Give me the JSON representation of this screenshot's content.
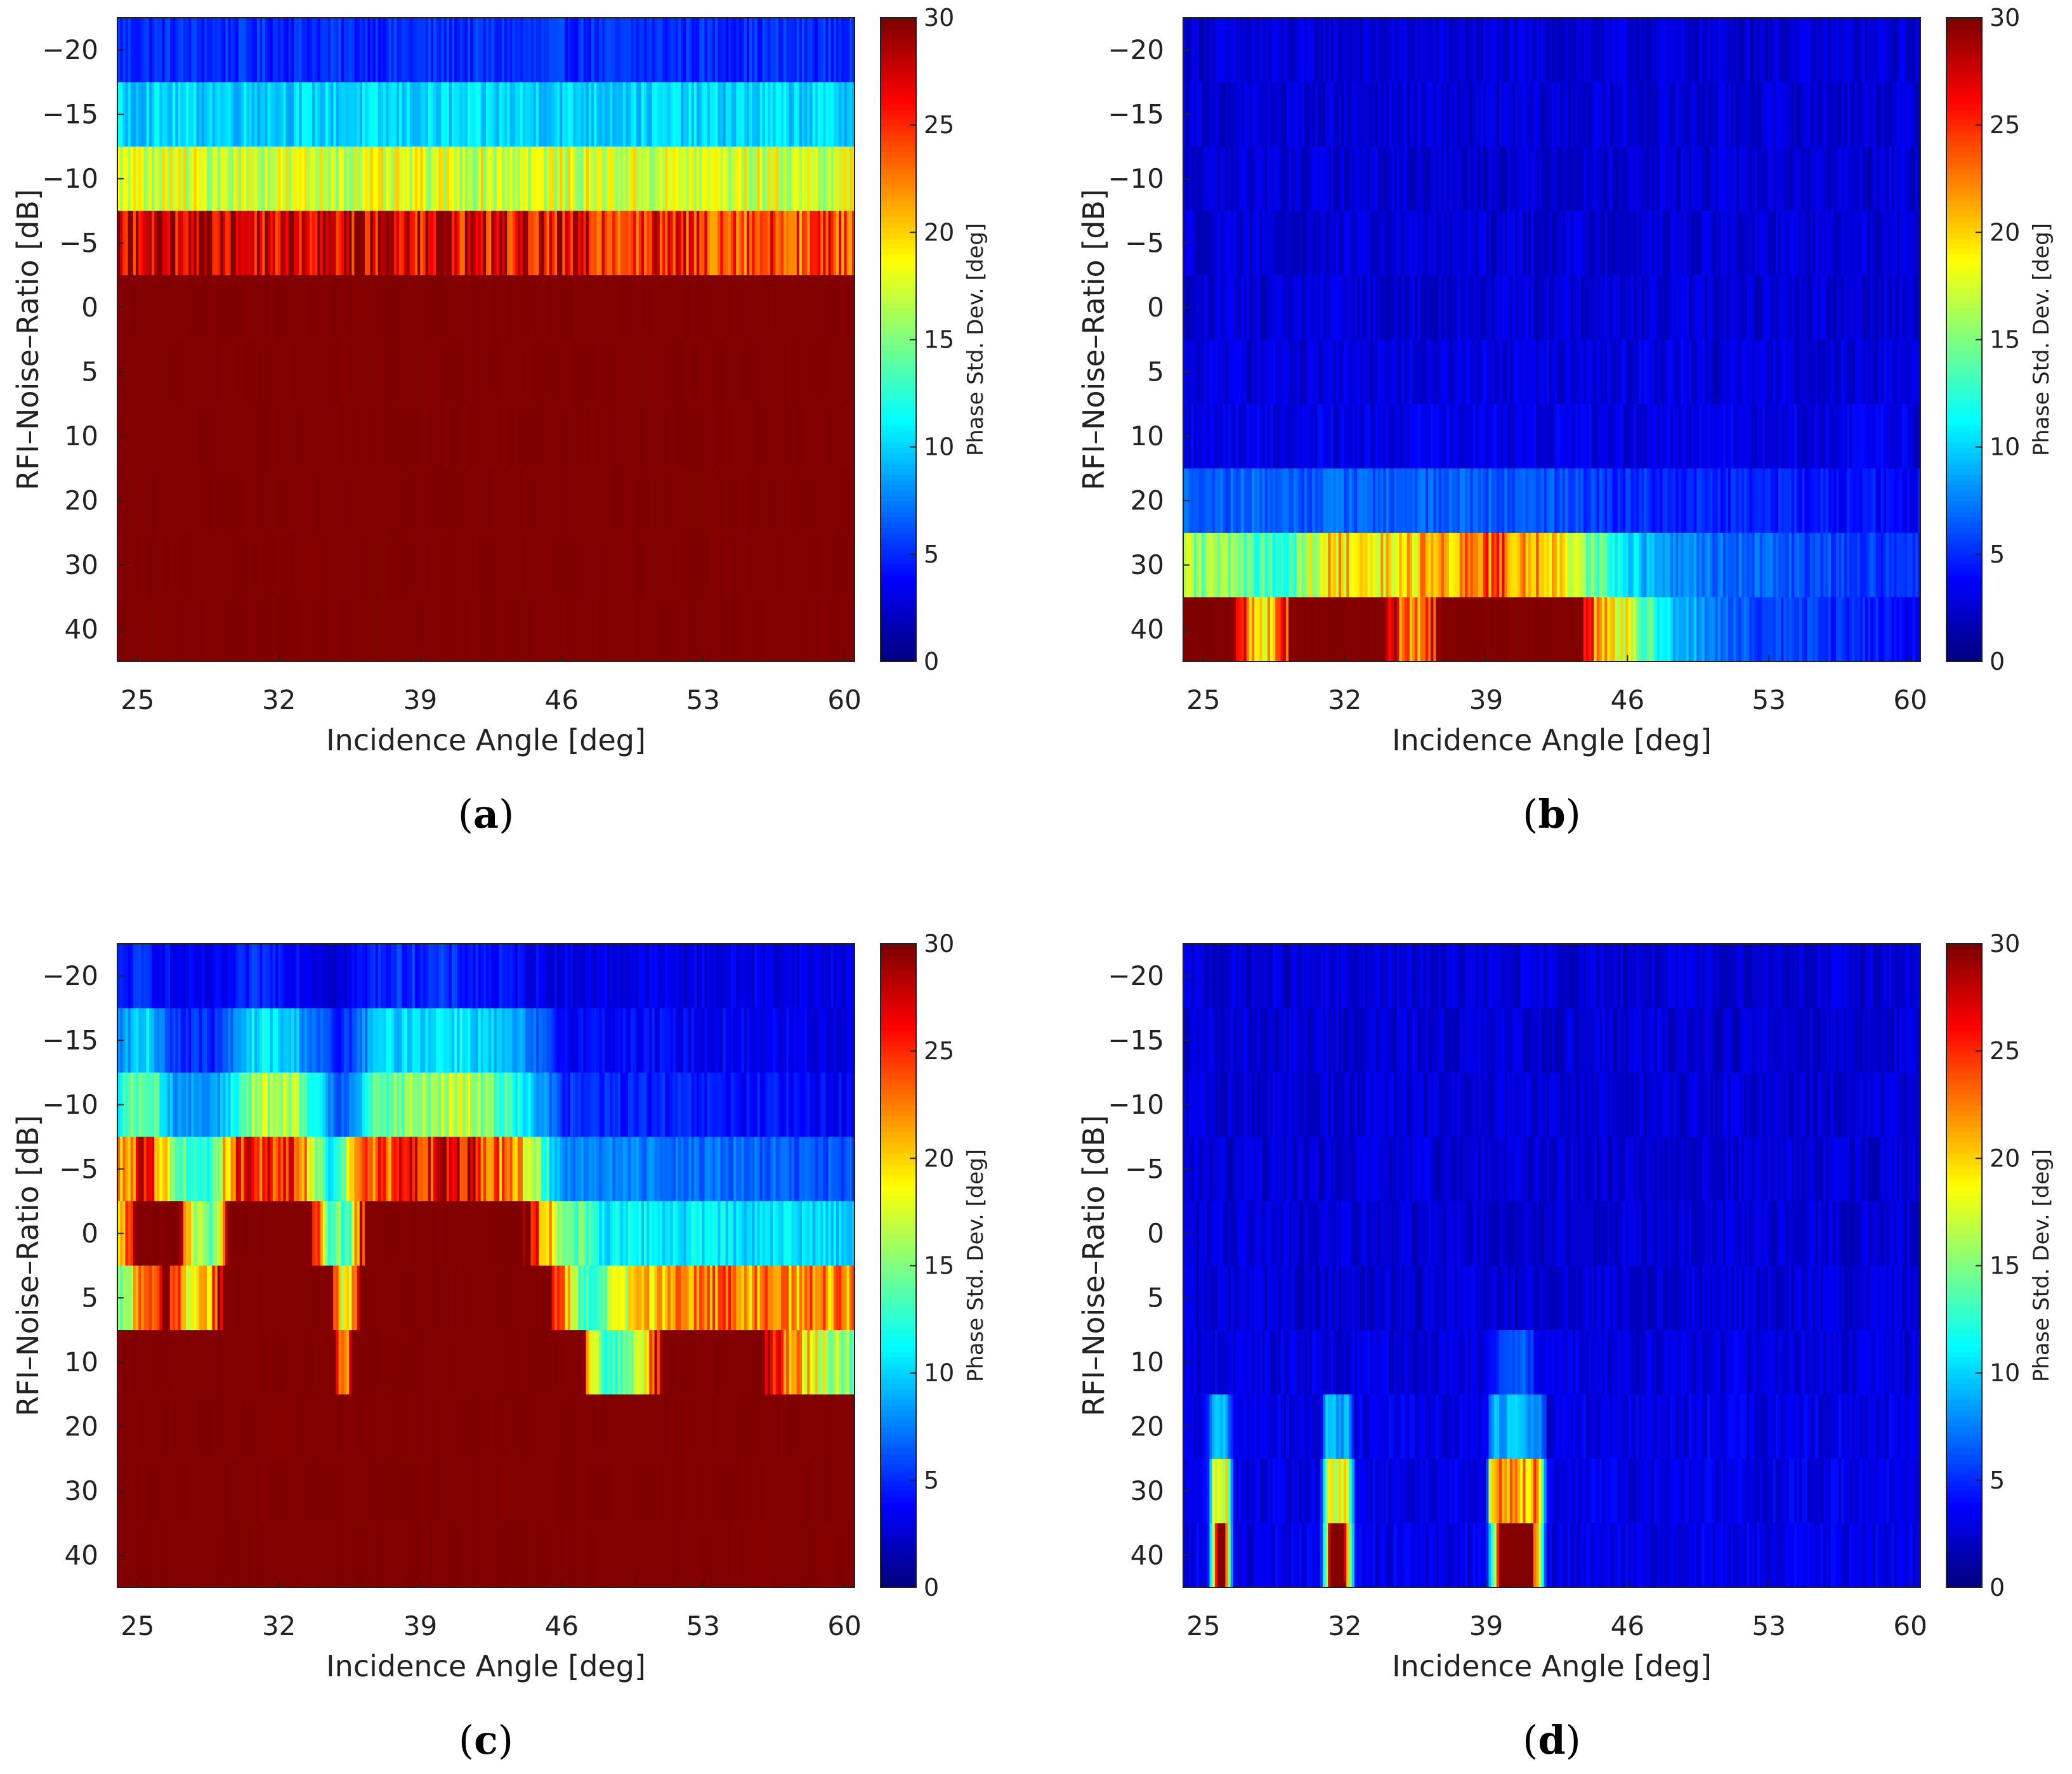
{
  "chart_data": [
    {
      "panel": "(a)",
      "type": "heatmap",
      "xlabel": "Incidence Angle [deg]",
      "ylabel": "RFI–Noise–Ratio [dB]",
      "colorbar_label": "Phase Std. Dev. [deg]",
      "x_ticks": [
        25,
        32,
        39,
        46,
        53,
        60
      ],
      "xlim": [
        24,
        60.5
      ],
      "y_rows": [
        "-20",
        "-15",
        "-10",
        "-5",
        "0",
        "5",
        "10",
        "20",
        "30",
        "40"
      ],
      "colorbar_ticks": [
        0,
        5,
        10,
        15,
        20,
        25,
        30
      ],
      "clim": [
        0,
        30
      ],
      "profiles": [
        [
          [
            24,
            5
          ],
          [
            60.5,
            5
          ]
        ],
        [
          [
            24,
            10
          ],
          [
            60.5,
            10
          ]
        ],
        [
          [
            24,
            17.5
          ],
          [
            60.5,
            17.5
          ]
        ],
        [
          [
            24,
            28
          ],
          [
            38,
            28
          ],
          [
            46,
            26
          ],
          [
            53,
            25
          ],
          [
            60.5,
            24
          ]
        ],
        [
          [
            24,
            30
          ],
          [
            60.5,
            30
          ]
        ],
        [
          [
            24,
            30
          ],
          [
            60.5,
            30
          ]
        ],
        [
          [
            24,
            30
          ],
          [
            60.5,
            30
          ]
        ],
        [
          [
            24,
            30
          ],
          [
            60.5,
            30
          ]
        ],
        [
          [
            24,
            30
          ],
          [
            60.5,
            30
          ]
        ],
        [
          [
            24,
            30
          ],
          [
            60.5,
            30
          ]
        ]
      ]
    },
    {
      "panel": "(b)",
      "type": "heatmap",
      "xlabel": "Incidence Angle [deg]",
      "ylabel": "RFI–Noise–Ratio [dB]",
      "colorbar_label": "Phase Std. Dev. [deg]",
      "x_ticks": [
        25,
        32,
        39,
        46,
        53,
        60
      ],
      "xlim": [
        24,
        60.5
      ],
      "y_rows": [
        "-20",
        "-15",
        "-10",
        "-5",
        "0",
        "5",
        "10",
        "20",
        "30",
        "40"
      ],
      "colorbar_ticks": [
        0,
        5,
        10,
        15,
        20,
        25,
        30
      ],
      "clim": [
        0,
        30
      ],
      "profiles": [
        [
          [
            24,
            2.5
          ],
          [
            60.5,
            2.5
          ]
        ],
        [
          [
            24,
            2.5
          ],
          [
            60.5,
            2.5
          ]
        ],
        [
          [
            24,
            2.5
          ],
          [
            60.5,
            2.5
          ]
        ],
        [
          [
            24,
            2.5
          ],
          [
            60.5,
            2.5
          ]
        ],
        [
          [
            24,
            2.5
          ],
          [
            60.5,
            2.5
          ]
        ],
        [
          [
            24,
            2.8
          ],
          [
            60.5,
            2.8
          ]
        ],
        [
          [
            24,
            3
          ],
          [
            60.5,
            3
          ]
        ],
        [
          [
            24,
            6.5
          ],
          [
            40,
            6.5
          ],
          [
            46,
            5
          ],
          [
            60.5,
            4
          ]
        ],
        [
          [
            24,
            16
          ],
          [
            27,
            14
          ],
          [
            29,
            12
          ],
          [
            31,
            20
          ],
          [
            34,
            19
          ],
          [
            37,
            22
          ],
          [
            40,
            24
          ],
          [
            43,
            18
          ],
          [
            46,
            10
          ],
          [
            50,
            7
          ],
          [
            60.5,
            5
          ]
        ],
        [
          [
            24,
            30
          ],
          [
            26.5,
            30
          ],
          [
            27.5,
            20
          ],
          [
            28.5,
            20
          ],
          [
            29.5,
            30
          ],
          [
            34,
            30
          ],
          [
            35,
            22
          ],
          [
            36,
            24
          ],
          [
            36.8,
            30
          ],
          [
            43.5,
            30
          ],
          [
            44.5,
            22
          ],
          [
            46,
            18
          ],
          [
            48,
            10
          ],
          [
            52,
            6
          ],
          [
            60.5,
            4
          ]
        ]
      ]
    },
    {
      "panel": "(c)",
      "type": "heatmap",
      "xlabel": "Incidence Angle [deg]",
      "ylabel": "RFI–Noise–Ratio [dB]",
      "colorbar_label": "Phase Std. Dev. [deg]",
      "x_ticks": [
        25,
        32,
        39,
        46,
        53,
        60
      ],
      "xlim": [
        24,
        60.5
      ],
      "y_rows": [
        "-20",
        "-15",
        "-10",
        "-5",
        "0",
        "5",
        "10",
        "20",
        "30",
        "40"
      ],
      "colorbar_ticks": [
        0,
        5,
        10,
        15,
        20,
        25,
        30
      ],
      "clim": [
        0,
        30
      ],
      "profiles": [
        [
          [
            24,
            4
          ],
          [
            25.5,
            5
          ],
          [
            27,
            3
          ],
          [
            29,
            3
          ],
          [
            31,
            5
          ],
          [
            33,
            4
          ],
          [
            35,
            2.5
          ],
          [
            37,
            5
          ],
          [
            40,
            5
          ],
          [
            43,
            4
          ],
          [
            46,
            3
          ],
          [
            60.5,
            3
          ]
        ],
        [
          [
            24,
            8
          ],
          [
            25.5,
            10
          ],
          [
            27,
            5
          ],
          [
            29,
            5
          ],
          [
            31,
            11
          ],
          [
            33,
            9
          ],
          [
            35,
            4
          ],
          [
            37,
            10
          ],
          [
            41,
            11
          ],
          [
            44,
            8
          ],
          [
            46,
            4
          ],
          [
            60.5,
            3
          ]
        ],
        [
          [
            24,
            12
          ],
          [
            25.5,
            15
          ],
          [
            27,
            8
          ],
          [
            29,
            8
          ],
          [
            31,
            17
          ],
          [
            33,
            15
          ],
          [
            35,
            6
          ],
          [
            37,
            14
          ],
          [
            41,
            17
          ],
          [
            44,
            12
          ],
          [
            46,
            5
          ],
          [
            60.5,
            3.5
          ]
        ],
        [
          [
            24,
            20
          ],
          [
            25.5,
            27
          ],
          [
            27,
            14
          ],
          [
            28.5,
            12
          ],
          [
            30,
            26
          ],
          [
            33,
            24
          ],
          [
            34.5,
            10
          ],
          [
            36,
            22
          ],
          [
            41,
            28
          ],
          [
            44,
            20
          ],
          [
            46,
            8
          ],
          [
            60.5,
            6
          ]
        ],
        [
          [
            24,
            16
          ],
          [
            25,
            30
          ],
          [
            27,
            30
          ],
          [
            27.8,
            16
          ],
          [
            28.8,
            14
          ],
          [
            29.5,
            30
          ],
          [
            33.5,
            30
          ],
          [
            34.5,
            14
          ],
          [
            35.5,
            14
          ],
          [
            36.3,
            30
          ],
          [
            44,
            30
          ],
          [
            46,
            16
          ],
          [
            48,
            11
          ],
          [
            60.5,
            10
          ]
        ],
        [
          [
            24,
            14
          ],
          [
            26.5,
            30
          ],
          [
            27.5,
            20
          ],
          [
            28.5,
            20
          ],
          [
            29.2,
            30
          ],
          [
            34.5,
            30
          ],
          [
            35,
            18
          ],
          [
            35.5,
            18
          ],
          [
            36,
            30
          ],
          [
            45.5,
            30
          ],
          [
            47,
            12
          ],
          [
            49,
            18
          ],
          [
            53,
            23
          ],
          [
            60.5,
            22
          ]
        ],
        [
          [
            24,
            30
          ],
          [
            34.8,
            30
          ],
          [
            35.2,
            20
          ],
          [
            35.6,
            30
          ],
          [
            47,
            30
          ],
          [
            48,
            12
          ],
          [
            49.5,
            14
          ],
          [
            51,
            30
          ],
          [
            56,
            30
          ],
          [
            58,
            20
          ],
          [
            60.5,
            14
          ]
        ],
        [
          [
            24,
            30
          ],
          [
            60.5,
            30
          ]
        ],
        [
          [
            24,
            30
          ],
          [
            60.5,
            30
          ]
        ],
        [
          [
            24,
            30
          ],
          [
            60.5,
            30
          ]
        ]
      ]
    },
    {
      "panel": "(d)",
      "type": "heatmap",
      "xlabel": "Incidence Angle [deg]",
      "ylabel": "RFI–Noise–Ratio [dB]",
      "colorbar_label": "Phase Std. Dev. [deg]",
      "x_ticks": [
        25,
        32,
        39,
        46,
        53,
        60
      ],
      "xlim": [
        24,
        60.5
      ],
      "y_rows": [
        "-20",
        "-15",
        "-10",
        "-5",
        "0",
        "5",
        "10",
        "20",
        "30",
        "40"
      ],
      "colorbar_ticks": [
        0,
        5,
        10,
        15,
        20,
        25,
        30
      ],
      "clim": [
        0,
        30
      ],
      "profiles": [
        [
          [
            24,
            2.5
          ],
          [
            60.5,
            2.5
          ]
        ],
        [
          [
            24,
            2.5
          ],
          [
            60.5,
            2.5
          ]
        ],
        [
          [
            24,
            2.5
          ],
          [
            60.5,
            2.5
          ]
        ],
        [
          [
            24,
            2.5
          ],
          [
            60.5,
            2.5
          ]
        ],
        [
          [
            24,
            2.5
          ],
          [
            60.5,
            2.5
          ]
        ],
        [
          [
            24,
            2.5
          ],
          [
            60.5,
            2.5
          ]
        ],
        [
          [
            24,
            2.8
          ],
          [
            39,
            2.8
          ],
          [
            39.8,
            6
          ],
          [
            41,
            6
          ],
          [
            41.8,
            2.8
          ],
          [
            60.5,
            2.8
          ]
        ],
        [
          [
            24,
            3
          ],
          [
            25.2,
            3
          ],
          [
            25.5,
            9
          ],
          [
            26.2,
            9
          ],
          [
            26.5,
            3
          ],
          [
            30.8,
            3
          ],
          [
            31.1,
            9
          ],
          [
            32.2,
            9
          ],
          [
            32.5,
            3
          ],
          [
            39,
            3
          ],
          [
            39.3,
            9
          ],
          [
            41.7,
            9
          ],
          [
            42,
            3
          ],
          [
            60.5,
            3
          ]
        ],
        [
          [
            24,
            3
          ],
          [
            25.2,
            3
          ],
          [
            25.5,
            18
          ],
          [
            26.2,
            18
          ],
          [
            26.5,
            3
          ],
          [
            30.8,
            3
          ],
          [
            31.1,
            18
          ],
          [
            32.2,
            18
          ],
          [
            32.5,
            3
          ],
          [
            39,
            3
          ],
          [
            39.3,
            22
          ],
          [
            41.7,
            22
          ],
          [
            42,
            3
          ],
          [
            60.5,
            3
          ]
        ],
        [
          [
            24,
            3
          ],
          [
            25.2,
            3
          ],
          [
            25.5,
            16
          ],
          [
            25.7,
            30
          ],
          [
            26,
            30
          ],
          [
            26.3,
            16
          ],
          [
            26.5,
            3
          ],
          [
            30.8,
            3
          ],
          [
            31.1,
            16
          ],
          [
            31.3,
            30
          ],
          [
            32,
            30
          ],
          [
            32.3,
            16
          ],
          [
            32.5,
            3
          ],
          [
            39,
            3
          ],
          [
            39.4,
            16
          ],
          [
            39.7,
            30
          ],
          [
            41.3,
            30
          ],
          [
            41.7,
            16
          ],
          [
            42,
            3
          ],
          [
            60.5,
            3
          ]
        ]
      ]
    }
  ]
}
